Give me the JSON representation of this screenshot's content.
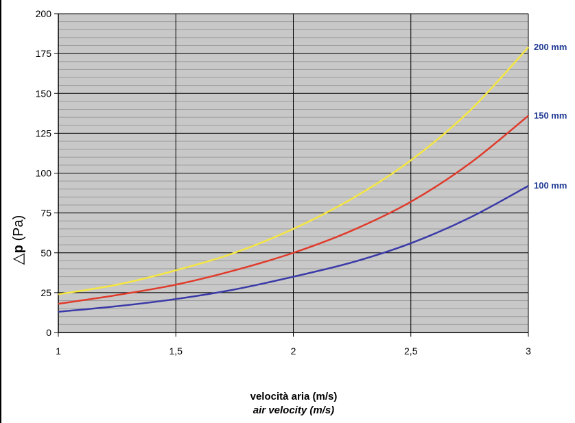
{
  "chart_data": {
    "type": "line",
    "xlabel_lines": [
      "velocità aria (m/s)",
      "air velocity (m/s)"
    ],
    "ylabel": {
      "symbol": "△",
      "var": "p",
      "unit": "(Pa)"
    },
    "xlim": [
      1,
      3
    ],
    "ylim": [
      0,
      200
    ],
    "x_ticks": [
      1,
      1.5,
      2,
      2.5,
      3
    ],
    "x_tick_labels": [
      "1",
      "1,5",
      "2",
      "2,5",
      "3"
    ],
    "y_ticks": [
      0,
      25,
      50,
      75,
      100,
      125,
      150,
      175,
      200
    ],
    "y_tick_labels": [
      "0",
      "25",
      "50",
      "75",
      "100",
      "125",
      "150",
      "175",
      "200"
    ],
    "grid": "major and minor",
    "plot_background": "#c8c8c8",
    "series": [
      {
        "name": "200 mm",
        "color": "#f5e642",
        "x": [
          1,
          1.25,
          1.5,
          1.75,
          2,
          2.25,
          2.5,
          2.75,
          3
        ],
        "values": [
          24,
          30,
          39,
          50,
          65,
          84,
          108,
          139,
          179
        ]
      },
      {
        "name": "150 mm",
        "color": "#e03a2a",
        "x": [
          1,
          1.25,
          1.5,
          1.75,
          2,
          2.25,
          2.5,
          2.75,
          3
        ],
        "values": [
          18,
          23.5,
          30,
          39,
          50,
          64,
          82,
          106,
          136
        ]
      },
      {
        "name": "100 mm",
        "color": "#3a3aa8",
        "x": [
          1,
          1.25,
          1.5,
          1.75,
          2,
          2.25,
          2.5,
          2.75,
          3
        ],
        "values": [
          13,
          16.5,
          21,
          27,
          35,
          44,
          56,
          72,
          92
        ]
      }
    ]
  }
}
